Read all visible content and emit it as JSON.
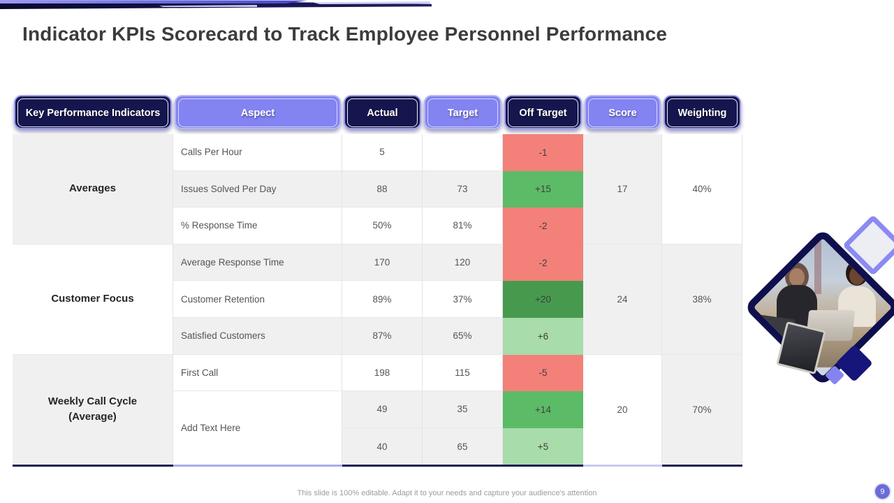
{
  "slide": {
    "title": "Indicator KPIs Scorecard to Track Employee Personnel Performance",
    "footer": "This slide is 100% editable.  Adapt it to your needs and capture your audience's attention",
    "page_number": "9"
  },
  "colors": {
    "navy": "#16164e",
    "periwinkle": "#8383f2",
    "red": "#f3817a",
    "green_mid": "#5cbb66",
    "green_dark": "#479a4d",
    "green_light": "#a8dcab",
    "gray_cell": "#f0f0f0"
  },
  "table": {
    "headers": [
      {
        "label": "Key Performance Indicators",
        "variant": "dark"
      },
      {
        "label": "Aspect",
        "variant": "light"
      },
      {
        "label": "Actual",
        "variant": "dark"
      },
      {
        "label": "Target",
        "variant": "light"
      },
      {
        "label": "Off Target",
        "variant": "dark"
      },
      {
        "label": "Score",
        "variant": "light"
      },
      {
        "label": "Weighting",
        "variant": "dark"
      }
    ],
    "groups": [
      {
        "name": "Averages",
        "score": "17",
        "weighting": "40%",
        "rows": [
          {
            "aspect": "Calls Per Hour",
            "actual": "5",
            "target": "",
            "off_target": "-1",
            "off_variant": "red"
          },
          {
            "aspect": "Issues Solved Per Day",
            "actual": "88",
            "target": "73",
            "off_target": "+15",
            "off_variant": "green-mid"
          },
          {
            "aspect": "% Response Time",
            "actual": "50%",
            "target": "81%",
            "off_target": "-2",
            "off_variant": "red"
          }
        ]
      },
      {
        "name": "Customer Focus",
        "score": "24",
        "weighting": "38%",
        "rows": [
          {
            "aspect": "Average Response Time",
            "actual": "170",
            "target": "120",
            "off_target": "-2",
            "off_variant": "red"
          },
          {
            "aspect": "Customer Retention",
            "actual": "89%",
            "target": "37%",
            "off_target": "+20",
            "off_variant": "green-dark"
          },
          {
            "aspect": "Satisfied Customers",
            "actual": "87%",
            "target": "65%",
            "off_target": "+6",
            "off_variant": "green-light"
          }
        ]
      },
      {
        "name": "Weekly Call Cycle (Average)",
        "score": "20",
        "weighting": "70%",
        "rows": [
          {
            "aspect": "First Call",
            "actual": "198",
            "target": "115",
            "off_target": "-5",
            "off_variant": "red"
          },
          {
            "aspect": "Add Text Here",
            "actual": "49",
            "target": "35",
            "off_target": "+14",
            "off_variant": "green-mid"
          },
          {
            "aspect": "",
            "actual": "40",
            "target": "65",
            "off_target": "+5",
            "off_variant": "green-light"
          }
        ]
      }
    ]
  }
}
